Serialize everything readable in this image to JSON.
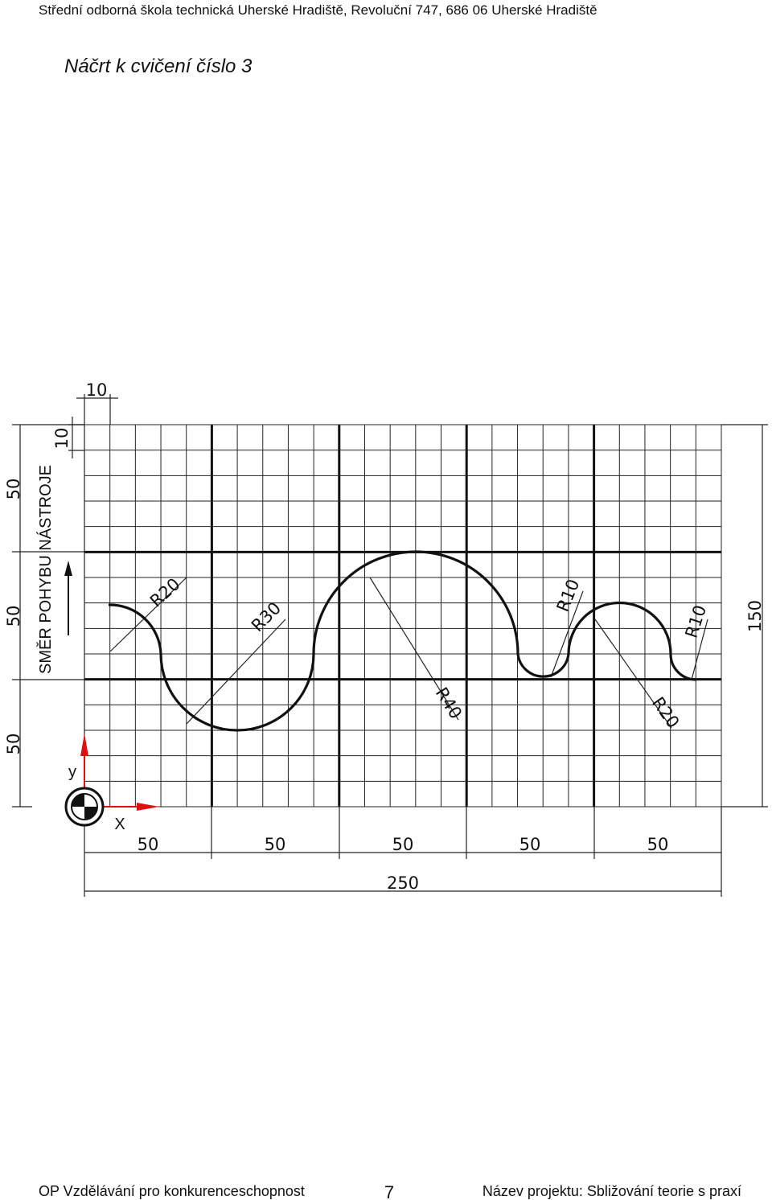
{
  "header": {
    "school": "Střední odborná škola technická Uherské Hradiště, Revoluční 747, 686 06 Uherské Hradiště",
    "title": "Náčrt k cvičení číslo 3"
  },
  "drawing": {
    "dim_top": "10",
    "dim_left_small": "10",
    "dims_left": [
      "50",
      "50",
      "50"
    ],
    "tool_direction": "SMĚR POHYBU NÁSTROJE",
    "dim_right": "150",
    "dims_bottom": [
      "50",
      "50",
      "50",
      "50",
      "50"
    ],
    "dim_total": "250",
    "radii": [
      "R20",
      "R30",
      "R40",
      "R10",
      "R20",
      "R10"
    ],
    "axis_y": "y",
    "axis_x": "X"
  },
  "footer": {
    "left": "OP Vzdělávání pro konkurenceschopnost",
    "page": "7",
    "right": "Název projektu: Sbližování teorie s praxí"
  }
}
